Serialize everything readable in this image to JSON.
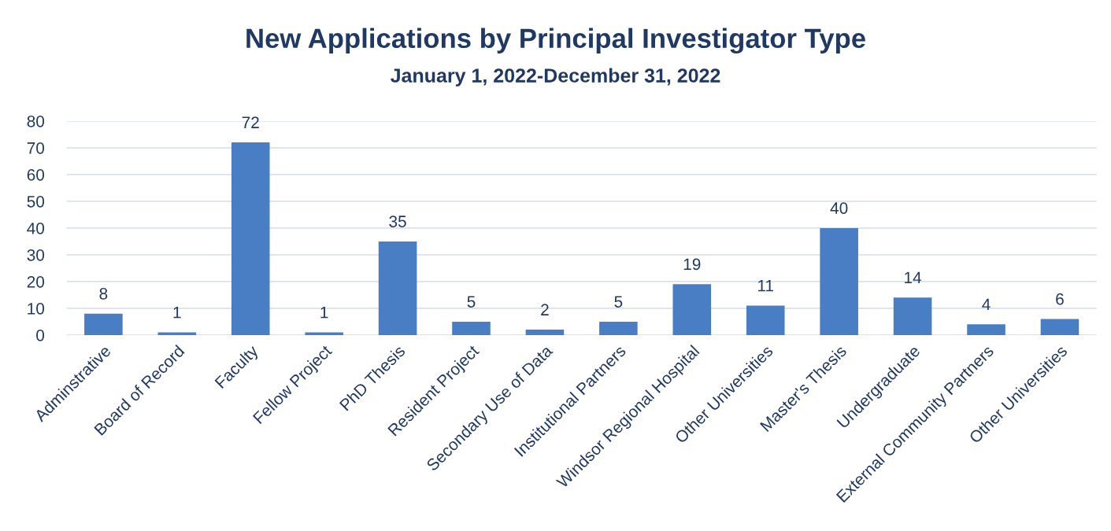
{
  "chart_data": {
    "type": "bar",
    "title": "New Applications by Principal Investigator Type",
    "subtitle": "January 1, 2022-December 31, 2022",
    "categories": [
      "Adminstrative",
      "Board of Record",
      "Faculty",
      "Fellow Project",
      "PhD Thesis",
      "Resident Project",
      "Secondary Use of Data",
      "Institutional Partners",
      "Windsor Regional Hospital",
      "Other Universities",
      "Master's Thesis",
      "Undergraduate",
      "External Community Partners",
      "Other Universities"
    ],
    "values": [
      8,
      1,
      72,
      1,
      35,
      5,
      2,
      5,
      19,
      11,
      40,
      14,
      4,
      6
    ],
    "color": "#4a7ec4",
    "ylim": [
      0,
      80
    ],
    "yticks": [
      0,
      10,
      20,
      30,
      40,
      50,
      60,
      70,
      80
    ],
    "grid": "y",
    "data_labels": true
  }
}
